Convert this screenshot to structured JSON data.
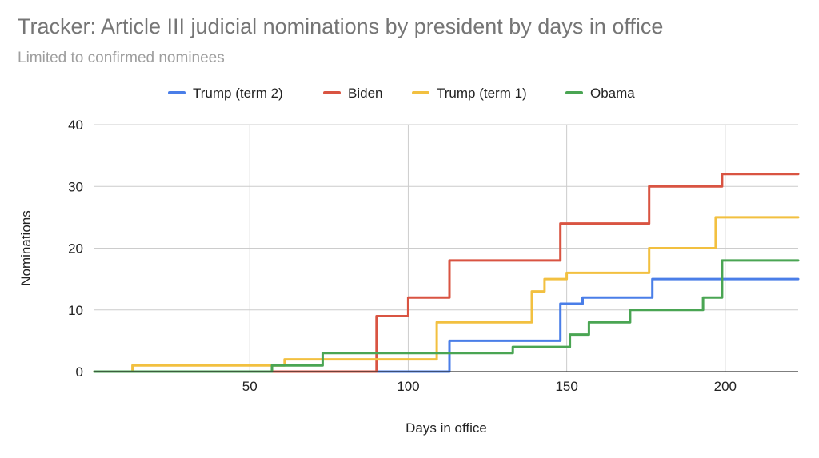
{
  "chart_data": {
    "type": "line",
    "title": "Tracker: Article III judicial nominations by president by days in office",
    "subtitle": "Limited to confirmed nominees",
    "xlabel": "Days in office",
    "ylabel": "Nominations",
    "xlim": [
      1,
      223
    ],
    "ylim": [
      0,
      40
    ],
    "x_ticks": [
      50,
      100,
      150,
      200
    ],
    "y_ticks": [
      0,
      10,
      20,
      30,
      40
    ],
    "grid": true,
    "legend_position": "top",
    "step": true,
    "series": [
      {
        "name": "Trump (term 2)",
        "color": "#4a7ee8",
        "points": [
          [
            1,
            0
          ],
          [
            113,
            5
          ],
          [
            148,
            11
          ],
          [
            155,
            12
          ],
          [
            177,
            15
          ],
          [
            223,
            15
          ]
        ]
      },
      {
        "name": "Biden",
        "color": "#d95442",
        "points": [
          [
            1,
            0
          ],
          [
            90,
            9
          ],
          [
            100,
            12
          ],
          [
            113,
            18
          ],
          [
            148,
            24
          ],
          [
            176,
            30
          ],
          [
            199,
            32
          ],
          [
            223,
            32
          ]
        ]
      },
      {
        "name": "Trump (term 1)",
        "color": "#f2c040",
        "points": [
          [
            1,
            0
          ],
          [
            13,
            1
          ],
          [
            61,
            2
          ],
          [
            109,
            8
          ],
          [
            139,
            13
          ],
          [
            143,
            15
          ],
          [
            150,
            16
          ],
          [
            176,
            20
          ],
          [
            197,
            25
          ],
          [
            223,
            25
          ]
        ]
      },
      {
        "name": "Obama",
        "color": "#4aa553",
        "points": [
          [
            1,
            0
          ],
          [
            57,
            1
          ],
          [
            73,
            3
          ],
          [
            133,
            4
          ],
          [
            151,
            6
          ],
          [
            157,
            8
          ],
          [
            170,
            10
          ],
          [
            193,
            12
          ],
          [
            199,
            18
          ],
          [
            223,
            18
          ]
        ]
      }
    ]
  }
}
